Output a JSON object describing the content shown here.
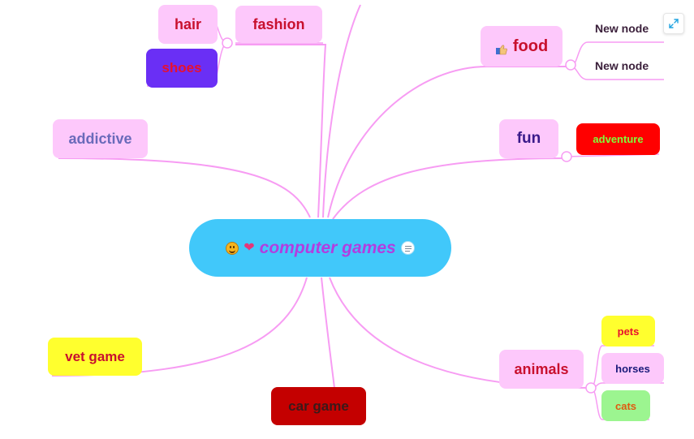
{
  "mindmap": {
    "center": {
      "title": "computer games",
      "color": "#b13ee0",
      "fill": "#41c8fa"
    },
    "colors": {
      "connector": "#f79cf3",
      "node_pink": "#fdc8fb"
    },
    "nodes": {
      "hair": {
        "label": "hair"
      },
      "fashion": {
        "label": "fashion"
      },
      "shoes": {
        "label": "shoes"
      },
      "food": {
        "label": "food"
      },
      "food_child_1": {
        "label": "New node"
      },
      "food_child_2": {
        "label": "New node"
      },
      "addictive": {
        "label": "addictive"
      },
      "fun": {
        "label": "fun"
      },
      "adventure": {
        "label": "adventure"
      },
      "vet_game": {
        "label": "vet game"
      },
      "car_game": {
        "label": "car game"
      },
      "animals": {
        "label": "animals"
      },
      "pets": {
        "label": "pets"
      },
      "horses": {
        "label": "horses"
      },
      "cats": {
        "label": "cats"
      }
    }
  },
  "toolbar": {
    "expand_icon": "expand-icon"
  }
}
